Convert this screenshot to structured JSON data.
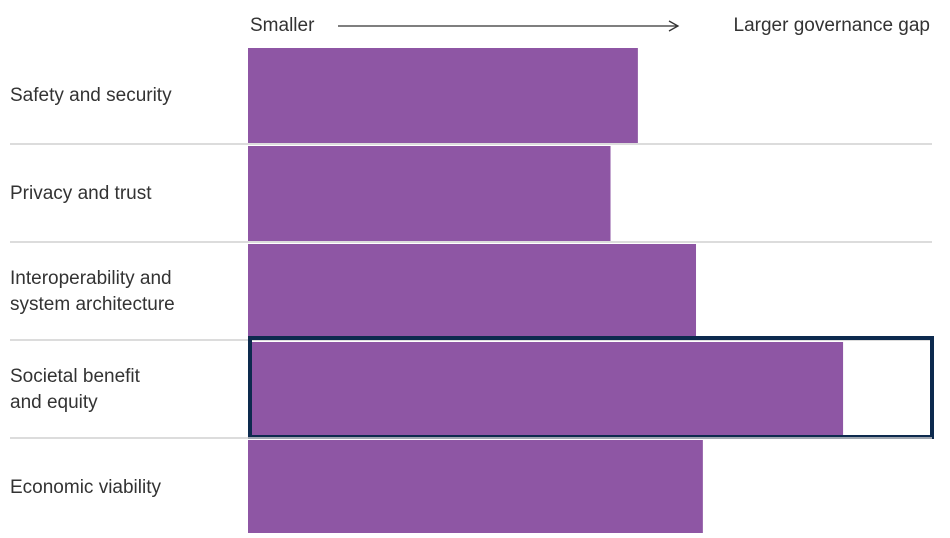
{
  "chart_data": {
    "type": "hbar",
    "x_axis": {
      "low_label": "Smaller",
      "high_label": "Larger governance gap"
    },
    "categories": [
      "Safety and security",
      "Privacy and trust",
      "Interoperability and\nsystem architecture",
      "Societal benefit\nand equity",
      "Economic viability"
    ],
    "values": [
      57,
      53,
      65.5,
      87,
      66.5
    ],
    "xlim": [
      0,
      100
    ],
    "color": "#8e56a4",
    "highlight": 3,
    "highlight_color": "#0d2a4e"
  }
}
